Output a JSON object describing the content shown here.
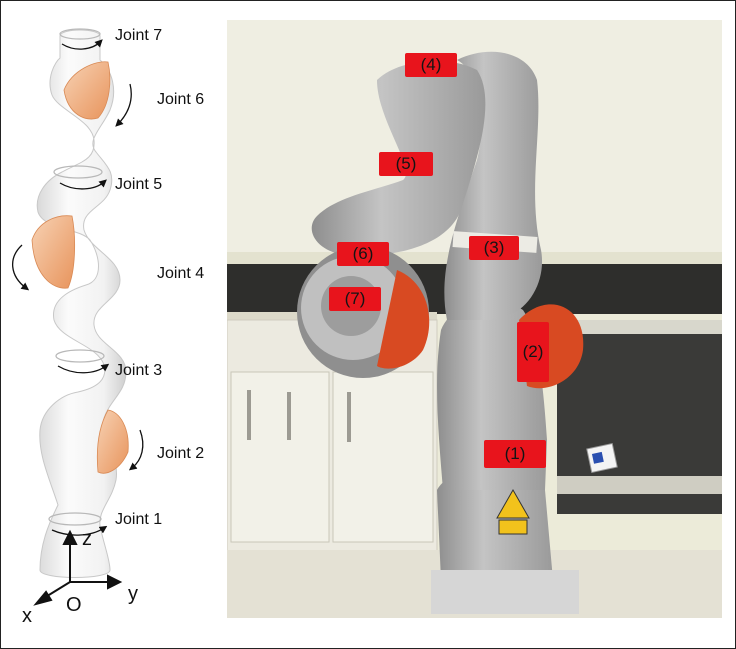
{
  "joint_labels": [
    "Joint 7",
    "Joint 6",
    "Joint 5",
    "Joint 4",
    "Joint 3",
    "Joint 2",
    "Joint 1"
  ],
  "axes": {
    "z": "z",
    "y": "y",
    "x": "x",
    "origin": "O"
  },
  "photo_tags": [
    "(4)",
    "(5)",
    "(3)",
    "(6)",
    "(7)",
    "(2)",
    "(1)"
  ],
  "colors": {
    "tag_red": "#e8141c",
    "robot_orange": "#e9a06a",
    "photo_wall": "#ece8d6",
    "robot_gray": "#a9a9a9"
  }
}
